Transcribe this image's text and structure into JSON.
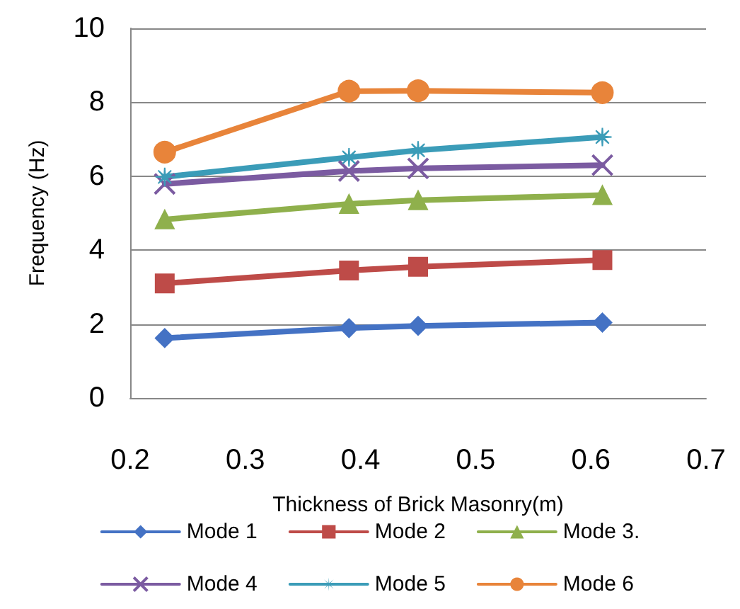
{
  "chart_data": {
    "type": "line",
    "xlabel": "Thickness of Brick Masonry(m)",
    "ylabel": "Frequency (Hz)",
    "x": [
      0.23,
      0.39,
      0.45,
      0.61
    ],
    "xlim": [
      0.2,
      0.7
    ],
    "xticks": [
      0.2,
      0.3,
      0.4,
      0.5,
      0.6,
      0.7
    ],
    "ylim": [
      0,
      10
    ],
    "yticks": [
      0,
      2,
      4,
      6,
      8,
      10
    ],
    "grid": "y",
    "legend": "bottom",
    "series": [
      {
        "name": "Mode 1",
        "color": "#4472c4",
        "marker": "diamond",
        "values": [
          1.62,
          1.89,
          1.95,
          2.04
        ]
      },
      {
        "name": "Mode 2",
        "color": "#be4b48",
        "marker": "square",
        "values": [
          3.1,
          3.45,
          3.55,
          3.73
        ]
      },
      {
        "name": "Mode 3.",
        "color": "#8fb04c",
        "marker": "triangle",
        "values": [
          4.83,
          5.25,
          5.35,
          5.49
        ]
      },
      {
        "name": "Mode 4",
        "color": "#7b5ba1",
        "marker": "cross",
        "values": [
          5.79,
          6.14,
          6.21,
          6.3
        ]
      },
      {
        "name": "Mode 5",
        "color": "#3b9cb8",
        "marker": "star",
        "values": [
          5.98,
          6.51,
          6.7,
          7.06
        ]
      },
      {
        "name": "Mode 6",
        "color": "#e8843a",
        "marker": "circle",
        "values": [
          6.65,
          8.3,
          8.31,
          8.26
        ]
      }
    ]
  }
}
